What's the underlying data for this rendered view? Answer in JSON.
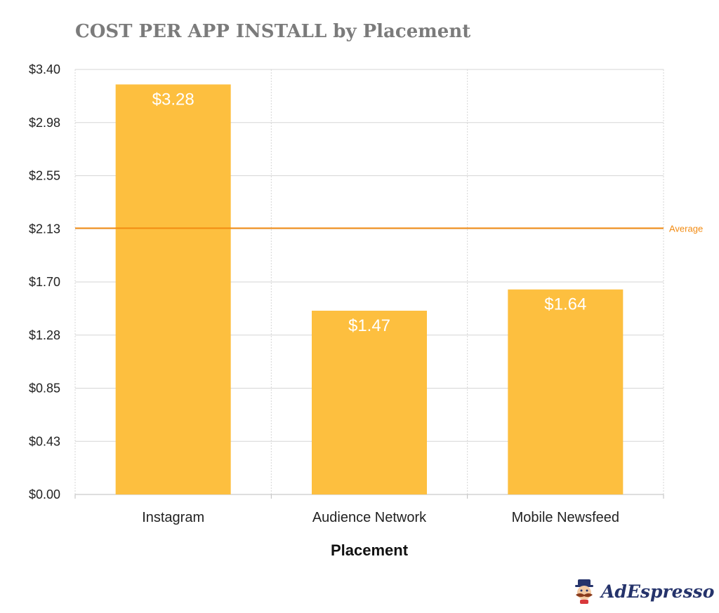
{
  "chart_data": {
    "type": "bar",
    "title": "COST PER APP INSTALL by Placement",
    "xlabel": "Placement",
    "ylabel": "",
    "categories": [
      "Instagram",
      "Audience Network",
      "Mobile Newsfeed"
    ],
    "values": [
      3.28,
      1.47,
      1.64
    ],
    "value_labels": [
      "$3.28",
      "$1.47",
      "$1.64"
    ],
    "ylim": [
      0,
      3.4
    ],
    "y_ticks": [
      0,
      0.425,
      0.85,
      1.275,
      1.7,
      2.125,
      2.55,
      2.975,
      3.4
    ],
    "y_tick_labels": [
      "$0.00",
      "$0.43",
      "$0.85",
      "$1.28",
      "$1.70",
      "$2.13",
      "$2.55",
      "$2.98",
      "$3.40"
    ],
    "reference_line": {
      "label": "Average",
      "value": 2.13
    },
    "grid": {
      "horizontal": true,
      "vertical": true
    },
    "colors": {
      "bar": "#fdbf3f",
      "reference_line": "#f28b12",
      "reference_label": "#f28b12",
      "grid": "#d6d6d6",
      "title": "#7b7b7b"
    }
  },
  "brand": {
    "logo_text": "AdEspresso",
    "logo_icon": "mustache-mascot-icon",
    "logo_color": "#25336b"
  }
}
